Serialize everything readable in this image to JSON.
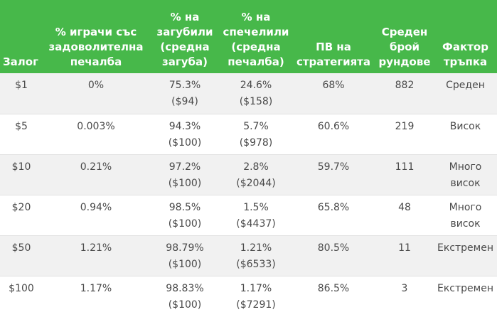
{
  "colors": {
    "header_bg": "#47b84a",
    "header_text": "#ffffff",
    "row_odd_bg": "#f1f1f1",
    "row_even_bg": "#ffffff",
    "cell_text": "#4a4a4a"
  },
  "table": {
    "headers": [
      "Залог",
      "% играчи със\nзадоволителна\nпечалба",
      "% на\nзагубили\n(средна\nзагуба)",
      "% на\nспечелили\n(средна\nпечалба)",
      "ПВ на\nстратегията",
      "Среден\nброй\nрундове",
      "Фактор\nтръпка"
    ],
    "rows": [
      [
        "$1",
        "0%",
        "75.3%\n($94)",
        "24.6%\n($158)",
        "68%",
        "882",
        "Среден"
      ],
      [
        "$5",
        "0.003%",
        "94.3%\n($100)",
        "5.7%\n($978)",
        "60.6%",
        "219",
        "Висок"
      ],
      [
        "$10",
        "0.21%",
        "97.2%\n($100)",
        "2.8%\n($2044)",
        "59.7%",
        "111",
        "Много\nвисок"
      ],
      [
        "$20",
        "0.94%",
        "98.5%\n($100)",
        "1.5%\n($4437)",
        "65.8%",
        "48",
        "Много\nвисок"
      ],
      [
        "$50",
        "1.21%",
        "98.79%\n($100)",
        "1.21%\n($6533)",
        "80.5%",
        "11",
        "Екстремен"
      ],
      [
        "$100",
        "1.17%",
        "98.83%\n($100)",
        "1.17%\n($7291)",
        "86.5%",
        "3",
        "Екстремен"
      ]
    ]
  }
}
